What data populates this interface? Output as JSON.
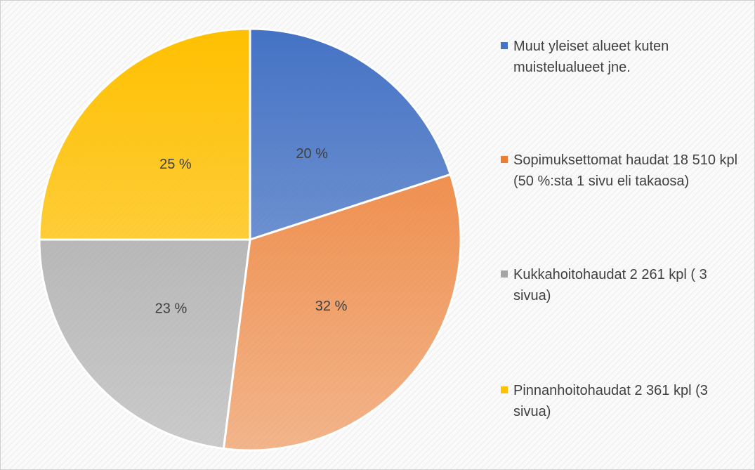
{
  "chart_data": {
    "type": "pie",
    "categories": [
      "Muut yleiset alueet kuten muistelualueet jne.",
      "Sopimuksettomat haudat 18 510 kpl (50 %:sta 1 sivu eli takaosa)",
      "Kukkahoitohaudat 2 261 kpl ( 3 sivua)",
      "Pinnanhoitohaudat 2 361 kpl (3 sivua)"
    ],
    "values": [
      20,
      32,
      23,
      25
    ],
    "value_labels": [
      "20 %",
      "32 %",
      "23 %",
      "25 %"
    ],
    "colors": [
      "#4472c4",
      "#ed7d31",
      "#a5a5a5",
      "#ffc000"
    ],
    "legend": "right"
  }
}
